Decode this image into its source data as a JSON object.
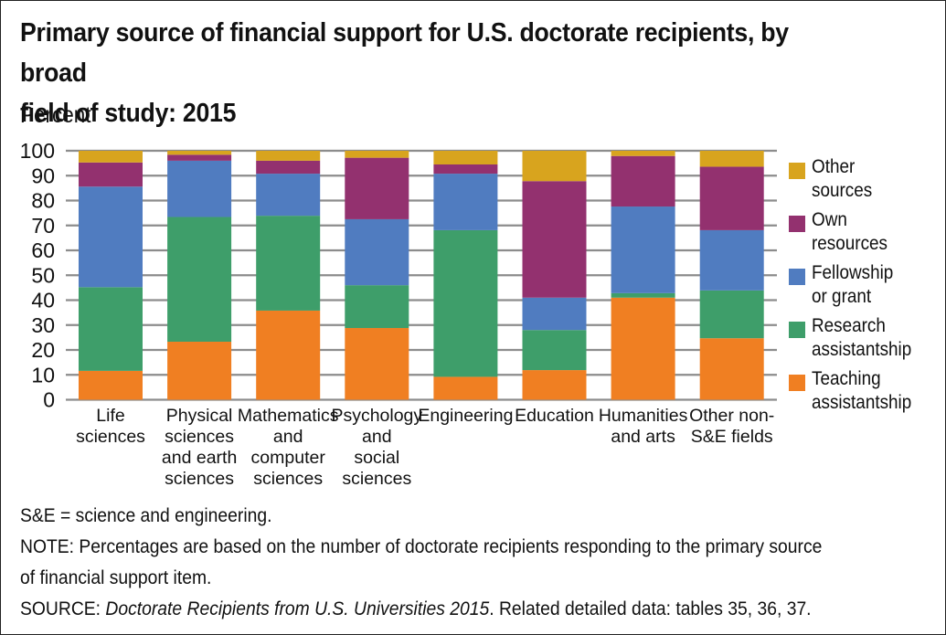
{
  "chart_data": {
    "type": "bar",
    "stacked": true,
    "title": "Primary source of financial support for U.S. doctorate recipients, by broad field of study: 2015",
    "title_lines": [
      "Primary source of financial support for U.S. doctorate recipients, by broad",
      "field of study: 2015"
    ],
    "xlabel": "",
    "ylabel": "Percent",
    "ylim": [
      0,
      100
    ],
    "yticks": [
      "0",
      "10",
      "20",
      "30",
      "40",
      "50",
      "60",
      "70",
      "80",
      "90",
      "100"
    ],
    "grid": true,
    "legend_position": "right",
    "categories": [
      "Life sciences",
      "Physical sciences and earth sciences",
      "Mathematics and computer sciences",
      "Psychology and social sciences",
      "Engineering",
      "Education",
      "Humanities and arts",
      "Other non-S&E fields"
    ],
    "category_label_lines": [
      [
        "Life",
        "sciences"
      ],
      [
        "Physical",
        "sciences",
        "and earth",
        "sciences"
      ],
      [
        "Mathematics",
        "and",
        "computer",
        "sciences"
      ],
      [
        "Psychology",
        "and",
        "social",
        "sciences"
      ],
      [
        "Engineering"
      ],
      [
        "Education"
      ],
      [
        "Humanities",
        "and arts"
      ],
      [
        "Other non-",
        "S&E fields"
      ]
    ],
    "series": [
      {
        "name": "Teaching assistantship",
        "color": "#F07F22",
        "values": [
          11.6,
          23.3,
          35.8,
          28.8,
          9.2,
          11.9,
          41.0,
          24.7
        ]
      },
      {
        "name": "Research assistantship",
        "color": "#3E9E6A",
        "values": [
          33.6,
          50.1,
          38.1,
          17.2,
          58.9,
          16.1,
          1.8,
          19.2
        ]
      },
      {
        "name": "Fellowship or grant",
        "color": "#507CC0",
        "values": [
          40.4,
          22.6,
          16.9,
          26.5,
          22.7,
          13.0,
          34.8,
          24.2
        ]
      },
      {
        "name": "Own resources",
        "color": "#93316F",
        "values": [
          9.7,
          2.4,
          5.2,
          24.7,
          3.7,
          46.8,
          20.3,
          25.5
        ]
      },
      {
        "name": "Other sources",
        "color": "#D8A41E",
        "values": [
          4.7,
          1.6,
          4.0,
          2.8,
          5.5,
          12.2,
          2.1,
          6.4
        ]
      }
    ]
  },
  "legend": [
    {
      "label": "Other\nsources",
      "color": "#D8A41E"
    },
    {
      "label": "Own\nresources",
      "color": "#93316F"
    },
    {
      "label": "Fellowship\nor grant",
      "color": "#507CC0"
    },
    {
      "label": "Research\nassistantship",
      "color": "#3E9E6A"
    },
    {
      "label": "Teaching\nassistantship",
      "color": "#F07F22"
    }
  ],
  "notes": {
    "abbrev": "S&E = science and engineering.",
    "note_line1": "NOTE: Percentages are based on the number of doctorate recipients responding to the primary source",
    "note_line2": "of financial support item.",
    "source_prefix": "SOURCE: ",
    "source_title": "Doctorate Recipients from U.S. Universities 2015",
    "source_suffix": ". Related detailed data: tables 35, 36, 37."
  }
}
